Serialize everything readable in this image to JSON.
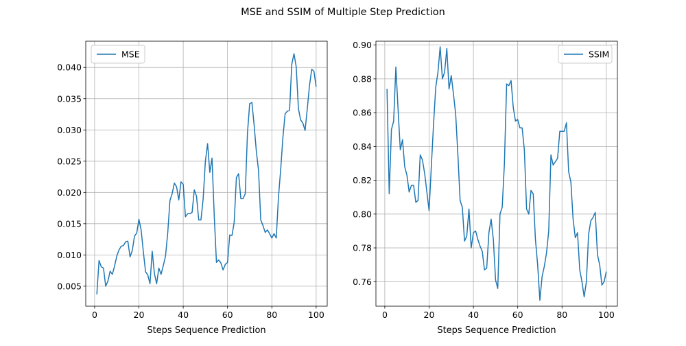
{
  "figure": {
    "suptitle": "MSE and SSIM of Multiple Step Prediction"
  },
  "chart_data": [
    {
      "type": "line",
      "title": "",
      "xlabel": "Steps Sequence Prediction",
      "ylabel": "",
      "xlim": [
        -4,
        105
      ],
      "ylim": [
        0.0018,
        0.0442
      ],
      "xticks": [
        0,
        20,
        40,
        60,
        80,
        100
      ],
      "yticks": [
        0.005,
        0.01,
        0.015,
        0.02,
        0.025,
        0.03,
        0.035,
        0.04
      ],
      "ytick_labels": [
        "0.005",
        "0.010",
        "0.015",
        "0.020",
        "0.025",
        "0.030",
        "0.035",
        "0.040"
      ],
      "grid": true,
      "legend_position": "upper-left",
      "color": "#1f77b4",
      "series": [
        {
          "name": "MSE",
          "x": [
            1,
            2,
            3,
            4,
            5,
            6,
            7,
            8,
            9,
            10,
            11,
            12,
            13,
            14,
            15,
            16,
            17,
            18,
            19,
            20,
            21,
            22,
            23,
            24,
            25,
            26,
            27,
            28,
            29,
            30,
            31,
            32,
            33,
            34,
            35,
            36,
            37,
            38,
            39,
            40,
            41,
            42,
            43,
            44,
            45,
            46,
            47,
            48,
            49,
            50,
            51,
            52,
            53,
            54,
            55,
            56,
            57,
            58,
            59,
            60,
            61,
            62,
            63,
            64,
            65,
            66,
            67,
            68,
            69,
            70,
            71,
            72,
            73,
            74,
            75,
            76,
            77,
            78,
            79,
            80,
            81,
            82,
            83,
            84,
            85,
            86,
            87,
            88,
            89,
            90,
            91,
            92,
            93,
            94,
            95,
            96,
            97,
            98,
            99,
            100
          ],
          "values": [
            0.0037,
            0.0091,
            0.0081,
            0.0079,
            0.005,
            0.0058,
            0.0074,
            0.0069,
            0.0082,
            0.0098,
            0.0108,
            0.0114,
            0.0115,
            0.0121,
            0.0122,
            0.0097,
            0.0107,
            0.013,
            0.0135,
            0.0157,
            0.014,
            0.0105,
            0.0073,
            0.0068,
            0.0054,
            0.0106,
            0.007,
            0.0054,
            0.0079,
            0.0069,
            0.0083,
            0.0098,
            0.0135,
            0.0187,
            0.0198,
            0.0215,
            0.0209,
            0.0188,
            0.0217,
            0.0213,
            0.0161,
            0.0166,
            0.0166,
            0.0168,
            0.0204,
            0.0194,
            0.0156,
            0.0156,
            0.019,
            0.025,
            0.0278,
            0.0232,
            0.0255,
            0.0163,
            0.0088,
            0.0092,
            0.0087,
            0.0076,
            0.0085,
            0.0088,
            0.0132,
            0.0131,
            0.0152,
            0.0224,
            0.023,
            0.019,
            0.019,
            0.0198,
            0.0295,
            0.0342,
            0.0344,
            0.0308,
            0.0266,
            0.0235,
            0.0156,
            0.0147,
            0.0136,
            0.014,
            0.0134,
            0.0127,
            0.0134,
            0.0127,
            0.0193,
            0.0237,
            0.0288,
            0.0326,
            0.033,
            0.0331,
            0.0405,
            0.0422,
            0.0401,
            0.0334,
            0.0316,
            0.0311,
            0.0299,
            0.0334,
            0.0371,
            0.0397,
            0.0394,
            0.0369
          ]
        }
      ]
    },
    {
      "type": "line",
      "title": "",
      "xlabel": "Steps Sequence Prediction",
      "ylabel": "",
      "xlim": [
        -4,
        105
      ],
      "ylim": [
        0.7455,
        0.9023
      ],
      "xticks": [
        0,
        20,
        40,
        60,
        80,
        100
      ],
      "yticks": [
        0.76,
        0.78,
        0.8,
        0.82,
        0.84,
        0.86,
        0.88,
        0.9
      ],
      "ytick_labels": [
        "0.76",
        "0.78",
        "0.80",
        "0.82",
        "0.84",
        "0.86",
        "0.88",
        "0.90"
      ],
      "grid": true,
      "legend_position": "upper-right",
      "color": "#1f77b4",
      "series": [
        {
          "name": "SSIM",
          "x": [
            1,
            2,
            3,
            4,
            5,
            6,
            7,
            8,
            9,
            10,
            11,
            12,
            13,
            14,
            15,
            16,
            17,
            18,
            19,
            20,
            21,
            22,
            23,
            24,
            25,
            26,
            27,
            28,
            29,
            30,
            31,
            32,
            33,
            34,
            35,
            36,
            37,
            38,
            39,
            40,
            41,
            42,
            43,
            44,
            45,
            46,
            47,
            48,
            49,
            50,
            51,
            52,
            53,
            54,
            55,
            56,
            57,
            58,
            59,
            60,
            61,
            62,
            63,
            64,
            65,
            66,
            67,
            68,
            69,
            70,
            71,
            72,
            73,
            74,
            75,
            76,
            77,
            78,
            79,
            80,
            81,
            82,
            83,
            84,
            85,
            86,
            87,
            88,
            89,
            90,
            91,
            92,
            93,
            94,
            95,
            96,
            97,
            98,
            99,
            100
          ],
          "values": [
            0.874,
            0.812,
            0.85,
            0.855,
            0.887,
            0.862,
            0.838,
            0.844,
            0.828,
            0.823,
            0.813,
            0.817,
            0.817,
            0.807,
            0.808,
            0.835,
            0.832,
            0.824,
            0.813,
            0.802,
            0.828,
            0.853,
            0.875,
            0.884,
            0.899,
            0.88,
            0.884,
            0.898,
            0.874,
            0.882,
            0.871,
            0.859,
            0.835,
            0.808,
            0.804,
            0.784,
            0.787,
            0.803,
            0.78,
            0.789,
            0.79,
            0.785,
            0.781,
            0.778,
            0.767,
            0.768,
            0.789,
            0.797,
            0.785,
            0.761,
            0.756,
            0.8,
            0.804,
            0.83,
            0.877,
            0.876,
            0.879,
            0.863,
            0.855,
            0.856,
            0.851,
            0.851,
            0.838,
            0.803,
            0.8,
            0.814,
            0.812,
            0.785,
            0.77,
            0.749,
            0.763,
            0.769,
            0.777,
            0.79,
            0.835,
            0.829,
            0.831,
            0.833,
            0.849,
            0.849,
            0.849,
            0.854,
            0.825,
            0.819,
            0.797,
            0.786,
            0.789,
            0.767,
            0.76,
            0.751,
            0.76,
            0.788,
            0.796,
            0.798,
            0.801,
            0.776,
            0.77,
            0.758,
            0.76,
            0.766
          ]
        }
      ]
    }
  ]
}
